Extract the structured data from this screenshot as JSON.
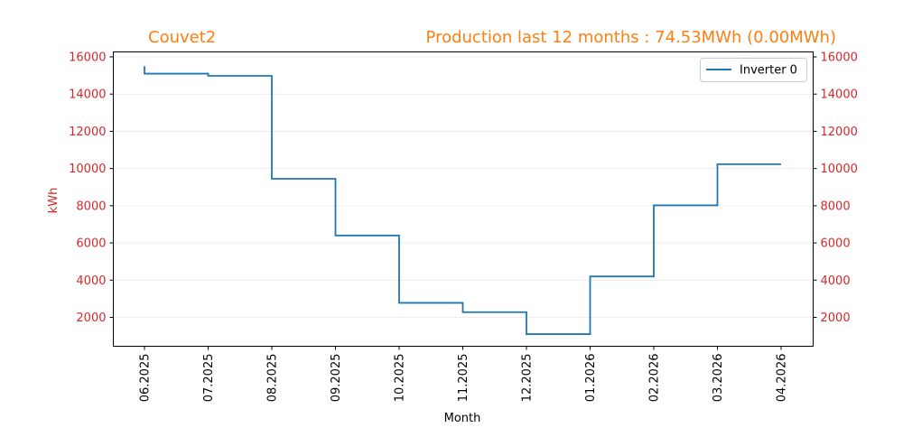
{
  "header": {
    "site_name": "Couvet2",
    "production_summary": "Production last 12 months : 74.53MWh (0.00MWh)"
  },
  "colors": {
    "title": "#ff7f0e",
    "tick_labels": "#d62728",
    "series": "#1f77b4",
    "axis": "#000000",
    "grid": "#e8e8e8"
  },
  "chart_data": {
    "type": "line",
    "step": "post",
    "title": "Production last 12 months : 74.53MWh (0.00MWh)",
    "xlabel": "Month",
    "ylabel": "kWh",
    "x": [
      "06.2025",
      "07.2025",
      "08.2025",
      "09.2025",
      "10.2025",
      "11.2025",
      "12.2025",
      "01.2026",
      "02.2026",
      "03.2026",
      "04.2026"
    ],
    "x_ticks": [
      "06.2025",
      "07.2025",
      "08.2025",
      "09.2025",
      "10.2025",
      "11.2025",
      "12.2025",
      "01.2026",
      "02.2026",
      "03.2026",
      "04.2026"
    ],
    "series": [
      {
        "name": "Inverter 0",
        "initial_value": 15500,
        "values": [
          15100,
          14980,
          9450,
          6400,
          2780,
          2280,
          1100,
          4200,
          8020,
          10230,
          10230
        ]
      }
    ],
    "ylim": [
      0,
      16000
    ],
    "y_ticks": [
      2000,
      4000,
      6000,
      8000,
      10000,
      12000,
      14000,
      16000
    ],
    "secondary_y_ticks": [
      2000,
      4000,
      6000,
      8000,
      10000,
      12000,
      14000,
      16000
    ],
    "grid": "horizontal",
    "legend_position": "top-right"
  }
}
